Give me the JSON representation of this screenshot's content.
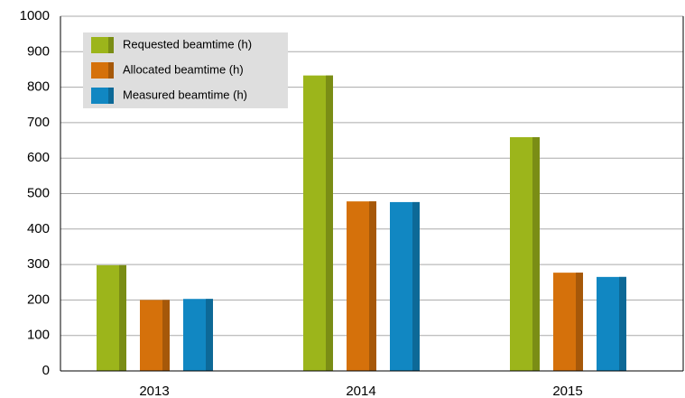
{
  "chart_data": {
    "type": "bar",
    "categories": [
      "2013",
      "2014",
      "2015"
    ],
    "series": [
      {
        "name": "Requested beamtime (h)",
        "color": "#9cb51b",
        "values": [
          298,
          833,
          659
        ]
      },
      {
        "name": "Allocated beamtime (h)",
        "color": "#d5710b",
        "values": [
          200,
          478,
          277
        ]
      },
      {
        "name": "Measured beamtime (h)",
        "color": "#1187c2",
        "values": [
          203,
          476,
          265
        ]
      }
    ],
    "ylim": [
      0,
      1000
    ],
    "yticks": [
      0,
      100,
      200,
      300,
      400,
      500,
      600,
      700,
      800,
      900,
      1000
    ],
    "grid": true,
    "legend": "upper left"
  }
}
